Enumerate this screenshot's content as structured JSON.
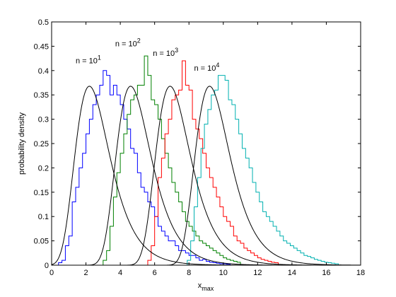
{
  "chart_data": {
    "type": "histogram-with-density",
    "xlabel_base": "x",
    "xlabel_sub": "max",
    "ylabel": "probability density",
    "xlim": [
      0,
      18
    ],
    "ylim": [
      0,
      0.5
    ],
    "xticks": [
      0,
      2,
      4,
      6,
      8,
      10,
      12,
      14,
      16,
      18
    ],
    "yticks": [
      0,
      0.05,
      0.1,
      0.15,
      0.2,
      0.25,
      0.3,
      0.35,
      0.4,
      0.45,
      0.5
    ],
    "ytick_labels": [
      "0",
      "0.05",
      "0.1",
      "0.15",
      "0.2",
      "0.25",
      "0.3",
      "0.35",
      "0.4",
      "0.45",
      "0.5"
    ],
    "grid": false,
    "annotations": [
      {
        "base": "n = 10",
        "exp": "1",
        "x": 1.4,
        "y": 0.415
      },
      {
        "base": "n = 10",
        "exp": "2",
        "x": 3.7,
        "y": 0.45
      },
      {
        "base": "n = 10",
        "exp": "3",
        "x": 5.9,
        "y": 0.43
      },
      {
        "base": "n = 10",
        "exp": "4",
        "x": 8.3,
        "y": 0.4
      }
    ],
    "density_curves": [
      {
        "n": 10,
        "mode": 2.2,
        "scale": 1.0
      },
      {
        "n": 100,
        "mode": 4.6,
        "scale": 1.0
      },
      {
        "n": 1000,
        "mode": 6.9,
        "scale": 1.0
      },
      {
        "n": 10000,
        "mode": 9.2,
        "scale": 1.0
      }
    ],
    "series": [
      {
        "color": "#0000ff",
        "bin_width": 0.2,
        "x_start": 0.4,
        "values": [
          0.005,
          0.01,
          0.04,
          0.06,
          0.13,
          0.16,
          0.2,
          0.23,
          0.27,
          0.3,
          0.33,
          0.35,
          0.37,
          0.4,
          0.39,
          0.35,
          0.37,
          0.35,
          0.33,
          0.3,
          0.28,
          0.24,
          0.23,
          0.19,
          0.16,
          0.15,
          0.13,
          0.12,
          0.1,
          0.08,
          0.07,
          0.06,
          0.05,
          0.05,
          0.04,
          0.03,
          0.03,
          0.025,
          0.02,
          0.02,
          0.015,
          0.01,
          0.012,
          0.008,
          0.006,
          0.005,
          0.004,
          0.003,
          0.003,
          0.002
        ]
      },
      {
        "color": "#008000",
        "bin_width": 0.2,
        "x_start": 3.0,
        "values": [
          0.01,
          0.03,
          0.08,
          0.14,
          0.19,
          0.23,
          0.27,
          0.31,
          0.34,
          0.35,
          0.37,
          0.37,
          0.43,
          0.39,
          0.34,
          0.33,
          0.3,
          0.26,
          0.23,
          0.2,
          0.17,
          0.15,
          0.13,
          0.11,
          0.09,
          0.08,
          0.07,
          0.06,
          0.05,
          0.045,
          0.04,
          0.035,
          0.03,
          0.025,
          0.02,
          0.015,
          0.012,
          0.01,
          0.008,
          0.006
        ]
      },
      {
        "color": "#ff0000",
        "bin_width": 0.2,
        "x_start": 5.6,
        "values": [
          0.01,
          0.04,
          0.1,
          0.18,
          0.22,
          0.27,
          0.3,
          0.34,
          0.35,
          0.36,
          0.42,
          0.37,
          0.36,
          0.3,
          0.28,
          0.26,
          0.23,
          0.2,
          0.18,
          0.16,
          0.14,
          0.12,
          0.1,
          0.09,
          0.08,
          0.06,
          0.05,
          0.045,
          0.035,
          0.03,
          0.025,
          0.02,
          0.015,
          0.012,
          0.01,
          0.008,
          0.006,
          0.005
        ]
      },
      {
        "color": "#00b0b0",
        "bin_width": 0.2,
        "x_start": 7.9,
        "values": [
          0.01,
          0.05,
          0.12,
          0.18,
          0.24,
          0.29,
          0.32,
          0.35,
          0.36,
          0.39,
          0.39,
          0.38,
          0.34,
          0.33,
          0.3,
          0.27,
          0.24,
          0.22,
          0.2,
          0.17,
          0.15,
          0.13,
          0.11,
          0.1,
          0.09,
          0.08,
          0.07,
          0.06,
          0.05,
          0.045,
          0.04,
          0.035,
          0.03,
          0.025,
          0.02,
          0.018,
          0.015,
          0.012,
          0.01,
          0.008,
          0.006,
          0.005,
          0.004,
          0.003
        ]
      }
    ]
  }
}
